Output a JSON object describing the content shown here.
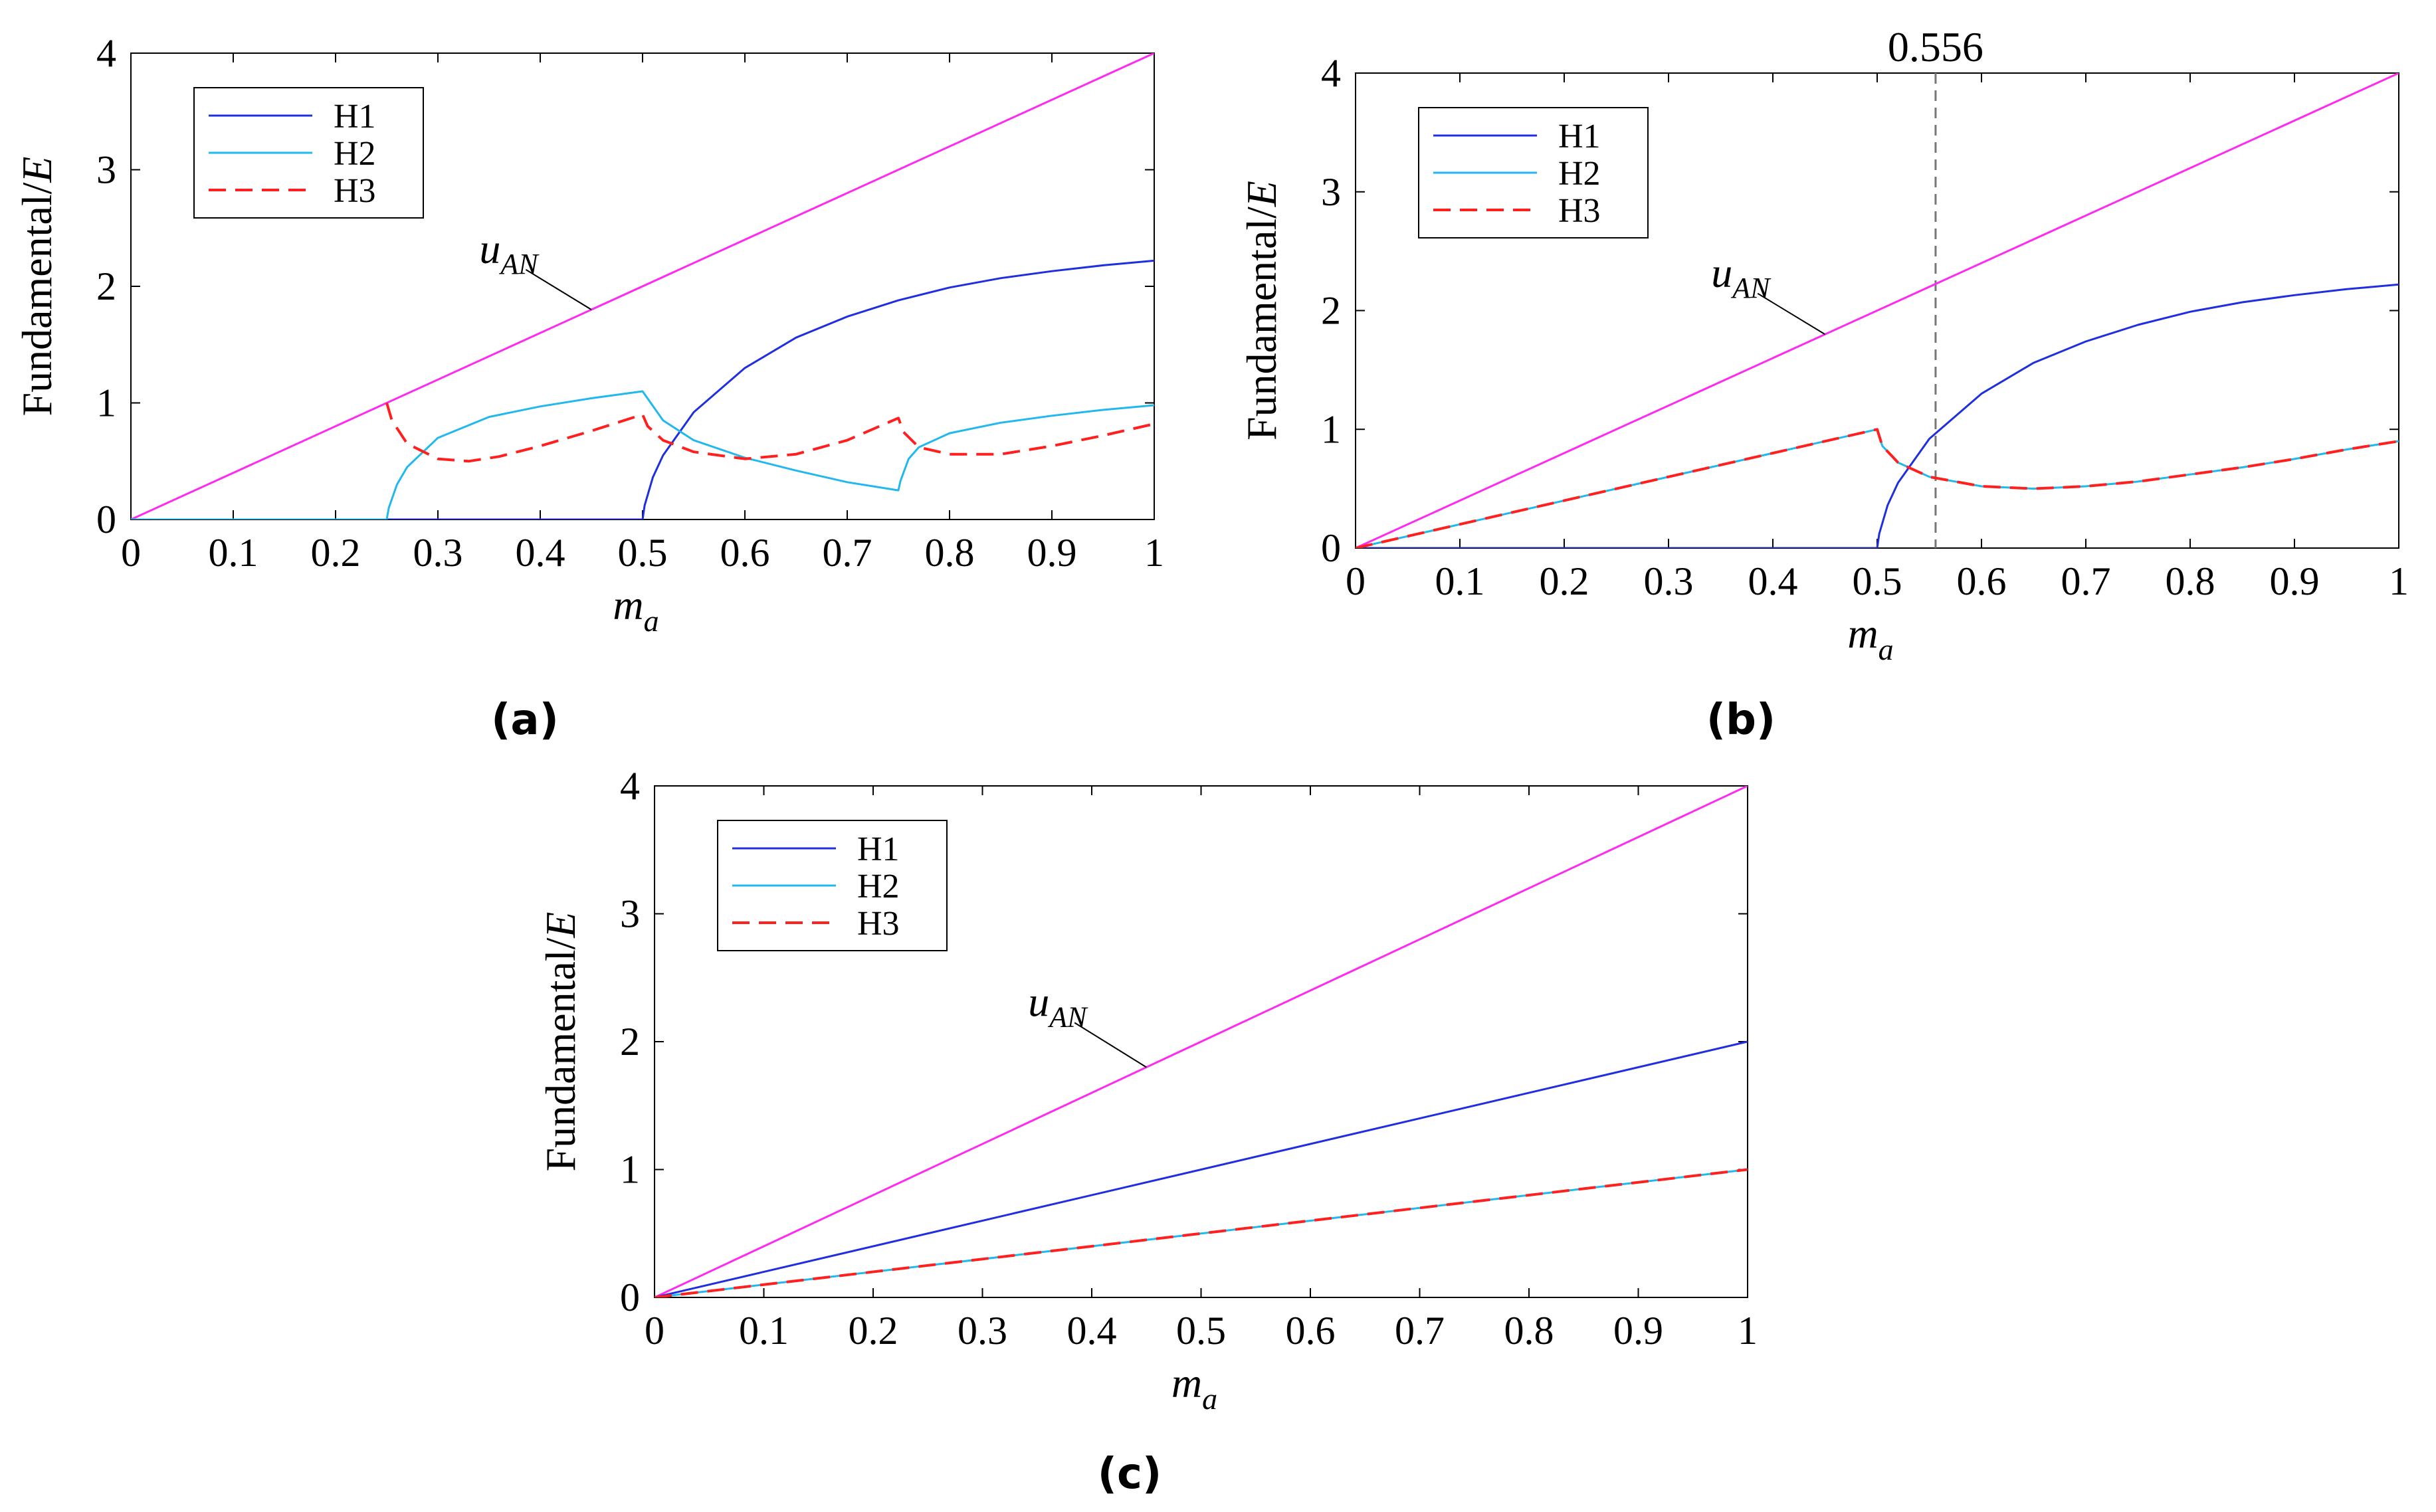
{
  "colors": {
    "H1": "#1f2fe0",
    "H2": "#21b8ee",
    "H3": "#ff1f1f",
    "uAN": "#ff2af0",
    "axis": "#000000",
    "marker": "#777777"
  },
  "chart_data": [
    {
      "type": "line",
      "panel": "(a)",
      "xlabel_main": "m",
      "xlabel_sub": "a",
      "ylabel": "Fundamental/",
      "ylabel_italic": "E",
      "xlim": [
        0,
        1
      ],
      "ylim": [
        0,
        4
      ],
      "xticks": [
        "0",
        "0.1",
        "0.2",
        "0.3",
        "0.4",
        "0.5",
        "0.6",
        "0.7",
        "0.8",
        "0.9",
        "1"
      ],
      "yticks": [
        "0",
        "1",
        "2",
        "3",
        "4"
      ],
      "legend": [
        "H1",
        "H2",
        "H3"
      ],
      "annotation": {
        "text_main": "u",
        "text_sub": "AN",
        "at": [
          0.45,
          1.8
        ],
        "label_at": [
          0.36,
          2.2
        ]
      },
      "series": [
        {
          "name": "uAN",
          "key": "uAN",
          "dash": false,
          "x": [
            0,
            1
          ],
          "y": [
            0,
            4
          ]
        },
        {
          "name": "H1",
          "key": "H1",
          "dash": false,
          "x": [
            0,
            0.5,
            0.502,
            0.51,
            0.52,
            0.55,
            0.6,
            0.65,
            0.7,
            0.75,
            0.8,
            0.85,
            0.9,
            0.95,
            1.0
          ],
          "y": [
            0,
            0,
            0.12,
            0.36,
            0.55,
            0.92,
            1.3,
            1.56,
            1.74,
            1.88,
            1.99,
            2.07,
            2.13,
            2.18,
            2.22
          ]
        },
        {
          "name": "H2",
          "key": "H2",
          "dash": false,
          "x": [
            0,
            0.25,
            0.252,
            0.26,
            0.27,
            0.3,
            0.35,
            0.4,
            0.45,
            0.5,
            0.52,
            0.55,
            0.6,
            0.65,
            0.7,
            0.75,
            0.752,
            0.76,
            0.77,
            0.8,
            0.85,
            0.9,
            0.95,
            1.0
          ],
          "y": [
            0,
            0,
            0.1,
            0.3,
            0.45,
            0.7,
            0.88,
            0.97,
            1.04,
            1.1,
            0.85,
            0.68,
            0.53,
            0.42,
            0.32,
            0.25,
            0.33,
            0.52,
            0.62,
            0.74,
            0.83,
            0.89,
            0.94,
            0.98
          ]
        },
        {
          "name": "H3",
          "key": "H3",
          "dash": true,
          "x": [
            0.25,
            0.255,
            0.27,
            0.3,
            0.33,
            0.36,
            0.4,
            0.45,
            0.5,
            0.505,
            0.52,
            0.55,
            0.6,
            0.65,
            0.7,
            0.75,
            0.755,
            0.77,
            0.8,
            0.85,
            0.9,
            0.95,
            1.0
          ],
          "y": [
            1.0,
            0.85,
            0.65,
            0.52,
            0.5,
            0.54,
            0.63,
            0.76,
            0.9,
            0.8,
            0.68,
            0.58,
            0.52,
            0.56,
            0.68,
            0.87,
            0.75,
            0.62,
            0.56,
            0.56,
            0.63,
            0.72,
            0.82
          ]
        }
      ]
    },
    {
      "type": "line",
      "panel": "(b)",
      "xlabel_main": "m",
      "xlabel_sub": "a",
      "ylabel": "Fundamental/",
      "ylabel_italic": "E",
      "xlim": [
        0,
        1
      ],
      "ylim": [
        0,
        4
      ],
      "xticks": [
        "0",
        "0.1",
        "0.2",
        "0.3",
        "0.4",
        "0.5",
        "0.6",
        "0.7",
        "0.8",
        "0.9",
        "1"
      ],
      "yticks": [
        "0",
        "1",
        "2",
        "3",
        "4"
      ],
      "legend": [
        "H1",
        "H2",
        "H3"
      ],
      "marker_line": {
        "x": 0.556,
        "label": "0.556"
      },
      "annotation": {
        "text_main": "u",
        "text_sub": "AN",
        "at": [
          0.45,
          1.8
        ],
        "label_at": [
          0.36,
          2.2
        ]
      },
      "series": [
        {
          "name": "uAN",
          "key": "uAN",
          "dash": false,
          "x": [
            0,
            1
          ],
          "y": [
            0,
            4
          ]
        },
        {
          "name": "H1",
          "key": "H1",
          "dash": false,
          "x": [
            0,
            0.5,
            0.502,
            0.51,
            0.52,
            0.55,
            0.6,
            0.65,
            0.7,
            0.75,
            0.8,
            0.85,
            0.9,
            0.95,
            1.0
          ],
          "y": [
            0,
            0,
            0.12,
            0.36,
            0.55,
            0.92,
            1.3,
            1.56,
            1.74,
            1.88,
            1.99,
            2.07,
            2.13,
            2.18,
            2.22
          ]
        },
        {
          "name": "H2",
          "key": "H2",
          "dash": false,
          "x": [
            0,
            0.5,
            0.505,
            0.52,
            0.55,
            0.6,
            0.65,
            0.7,
            0.75,
            0.8,
            0.85,
            0.9,
            0.95,
            1.0
          ],
          "y": [
            0,
            1.0,
            0.86,
            0.72,
            0.6,
            0.52,
            0.5,
            0.52,
            0.56,
            0.62,
            0.68,
            0.75,
            0.83,
            0.9
          ]
        },
        {
          "name": "H3",
          "key": "H3",
          "dash": true,
          "x": [
            0,
            0.5,
            0.505,
            0.52,
            0.55,
            0.6,
            0.65,
            0.7,
            0.75,
            0.8,
            0.85,
            0.9,
            0.95,
            1.0
          ],
          "y": [
            0,
            1.0,
            0.86,
            0.72,
            0.6,
            0.52,
            0.5,
            0.52,
            0.56,
            0.62,
            0.68,
            0.75,
            0.83,
            0.9
          ]
        }
      ]
    },
    {
      "type": "line",
      "panel": "(c)",
      "xlabel_main": "m",
      "xlabel_sub": "a",
      "ylabel": "Fundamental/",
      "ylabel_italic": "E",
      "xlim": [
        0,
        1
      ],
      "ylim": [
        0,
        4
      ],
      "xticks": [
        "0",
        "0.1",
        "0.2",
        "0.3",
        "0.4",
        "0.5",
        "0.6",
        "0.7",
        "0.8",
        "0.9",
        "1"
      ],
      "yticks": [
        "0",
        "1",
        "2",
        "3",
        "4"
      ],
      "legend": [
        "H1",
        "H2",
        "H3"
      ],
      "annotation": {
        "text_main": "u",
        "text_sub": "AN",
        "at": [
          0.45,
          1.8
        ],
        "label_at": [
          0.36,
          2.2
        ]
      },
      "series": [
        {
          "name": "uAN",
          "key": "uAN",
          "dash": false,
          "x": [
            0,
            1
          ],
          "y": [
            0,
            4
          ]
        },
        {
          "name": "H1",
          "key": "H1",
          "dash": false,
          "x": [
            0,
            1
          ],
          "y": [
            0,
            2
          ]
        },
        {
          "name": "H2",
          "key": "H2",
          "dash": false,
          "x": [
            0,
            1
          ],
          "y": [
            0,
            1
          ]
        },
        {
          "name": "H3",
          "key": "H3",
          "dash": true,
          "x": [
            0,
            1
          ],
          "y": [
            0,
            1
          ]
        }
      ]
    }
  ]
}
